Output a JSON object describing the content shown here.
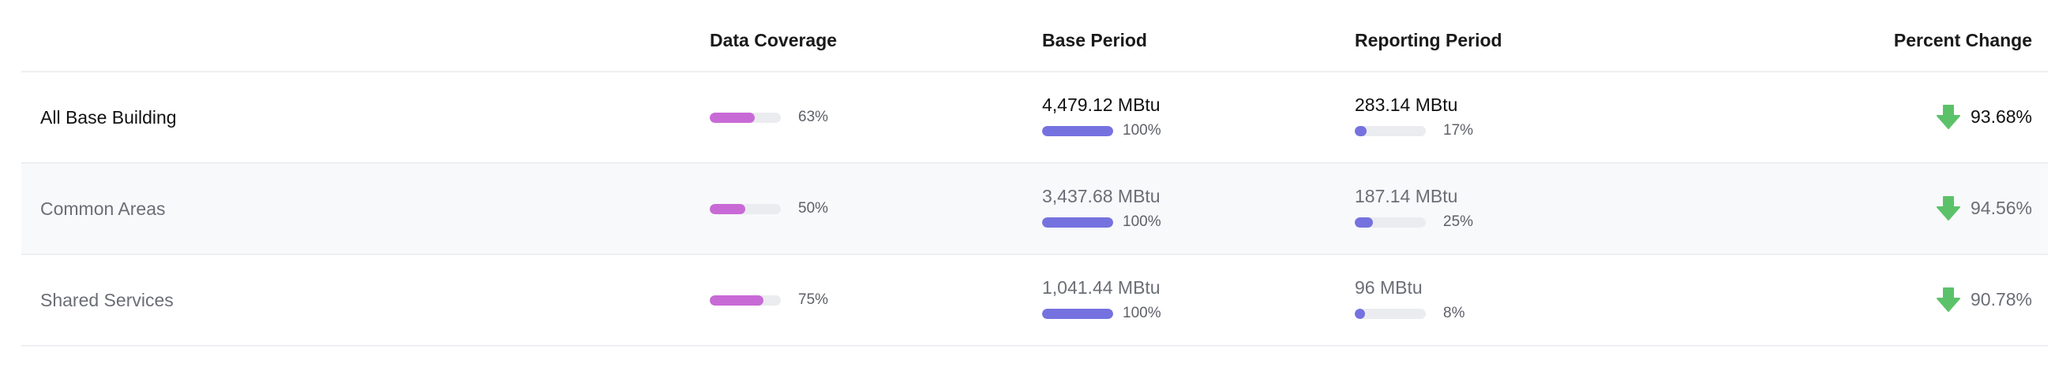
{
  "colors": {
    "coverage_fill": "#c86ad6",
    "period_fill": "#7572e0",
    "bar_track": "#ebecef",
    "decrease_arrow": "#5cc26a"
  },
  "headers": {
    "coverage": "Data Coverage",
    "base": "Base Period",
    "reporting": "Reporting Period",
    "change": "Percent Change"
  },
  "rows": [
    {
      "name": "All Base Building",
      "coverage": {
        "label": "63%",
        "fraction": 0.63
      },
      "base": {
        "value": "4,479.12 MBtu",
        "label": "100%",
        "fraction": 1.0
      },
      "reporting": {
        "value": "283.14 MBtu",
        "label": "17%",
        "fraction": 0.17
      },
      "change": {
        "value": "93.68%",
        "direction": "down",
        "icon": "arrow-down-icon"
      }
    },
    {
      "name": "Common Areas",
      "coverage": {
        "label": "50%",
        "fraction": 0.5
      },
      "base": {
        "value": "3,437.68 MBtu",
        "label": "100%",
        "fraction": 1.0
      },
      "reporting": {
        "value": "187.14 MBtu",
        "label": "25%",
        "fraction": 0.25
      },
      "change": {
        "value": "94.56%",
        "direction": "down",
        "icon": "arrow-down-icon"
      }
    },
    {
      "name": "Shared Services",
      "coverage": {
        "label": "75%",
        "fraction": 0.75
      },
      "base": {
        "value": "1,041.44 MBtu",
        "label": "100%",
        "fraction": 1.0
      },
      "reporting": {
        "value": "96 MBtu",
        "label": "8%",
        "fraction": 0.08
      },
      "change": {
        "value": "90.78%",
        "direction": "down",
        "icon": "arrow-down-icon"
      }
    }
  ]
}
